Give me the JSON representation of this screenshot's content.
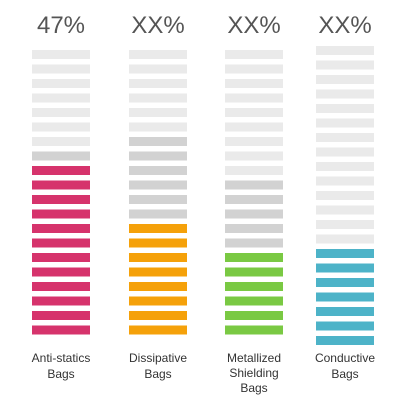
{
  "chart_data": {
    "type": "bar",
    "categories": [
      "Anti-statics Bags",
      "Dissipative Bags",
      "Metallized Shielding Bags",
      "Conductive Bags"
    ],
    "label_lines": [
      [
        "Anti-statics",
        "Bags"
      ],
      [
        "Dissipative",
        "Bags"
      ],
      [
        "Metallized",
        "Shielding",
        "Bags"
      ],
      [
        "Conductive",
        "Bags"
      ]
    ],
    "value_labels": [
      "47%",
      "XX%",
      "XX%",
      "XX%"
    ],
    "colors": [
      "#d6336c",
      "#f5a10a",
      "#7ac943",
      "#4db3c8"
    ],
    "segment_colors": {
      "empty": "#eaeaea",
      "shaded": "#d2d2d2"
    },
    "segments": [
      {
        "total": 20,
        "filled": 12,
        "shaded": 1
      },
      {
        "total": 20,
        "filled": 8,
        "shaded": 6
      },
      {
        "total": 20,
        "filled": 6,
        "shaded": 5
      },
      {
        "total": 21,
        "filled": 7,
        "shaded": 0
      }
    ]
  }
}
